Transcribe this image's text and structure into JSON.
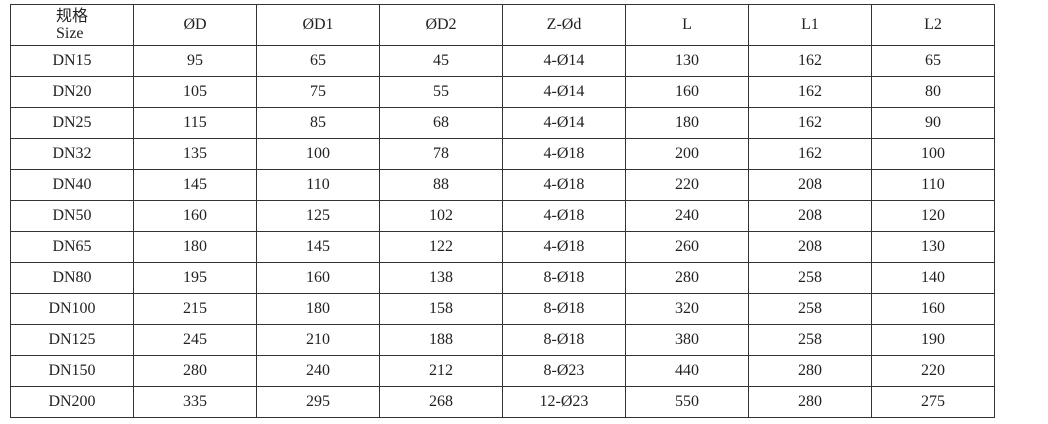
{
  "table": {
    "headers": {
      "size_cn": "规格",
      "size_en": "Size",
      "cols": [
        "ØD",
        "ØD1",
        "ØD2",
        "Z-Ød",
        "L",
        "L1",
        "L2"
      ]
    },
    "rows": [
      [
        "DN15",
        "95",
        "65",
        "45",
        "4-Ø14",
        "130",
        "162",
        "65"
      ],
      [
        "DN20",
        "105",
        "75",
        "55",
        "4-Ø14",
        "160",
        "162",
        "80"
      ],
      [
        "DN25",
        "115",
        "85",
        "68",
        "4-Ø14",
        "180",
        "162",
        "90"
      ],
      [
        "DN32",
        "135",
        "100",
        "78",
        "4-Ø18",
        "200",
        "162",
        "100"
      ],
      [
        "DN40",
        "145",
        "110",
        "88",
        "4-Ø18",
        "220",
        "208",
        "110"
      ],
      [
        "DN50",
        "160",
        "125",
        "102",
        "4-Ø18",
        "240",
        "208",
        "120"
      ],
      [
        "DN65",
        "180",
        "145",
        "122",
        "4-Ø18",
        "260",
        "208",
        "130"
      ],
      [
        "DN80",
        "195",
        "160",
        "138",
        "8-Ø18",
        "280",
        "258",
        "140"
      ],
      [
        "DN100",
        "215",
        "180",
        "158",
        "8-Ø18",
        "320",
        "258",
        "160"
      ],
      [
        "DN125",
        "245",
        "210",
        "188",
        "8-Ø18",
        "380",
        "258",
        "190"
      ],
      [
        "DN150",
        "280",
        "240",
        "212",
        "8-Ø23",
        "440",
        "280",
        "220"
      ],
      [
        "DN200",
        "335",
        "295",
        "268",
        "12-Ø23",
        "550",
        "280",
        "275"
      ]
    ]
  }
}
